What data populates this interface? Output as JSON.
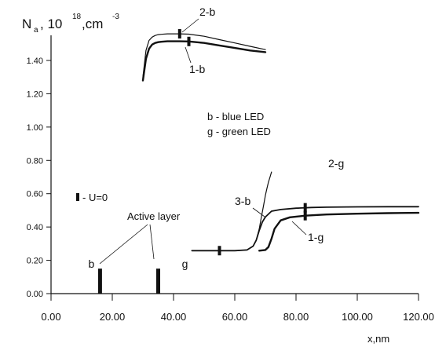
{
  "chart_data": {
    "type": "line",
    "ylabel": {
      "base": "N",
      "subscript": "a",
      "sep": ", 10",
      "exp": "18",
      "unit": ",cm",
      "unit_exp": "-3"
    },
    "xlabel": "x,nm",
    "xlim": [
      0,
      120
    ],
    "ylim": [
      0,
      1.5
    ],
    "xticks": [
      0,
      20,
      40,
      60,
      80,
      100,
      120
    ],
    "xtick_labels": [
      "0.00",
      "20.00",
      "40.00",
      "60.00",
      "80.00",
      "100.00",
      "120.00"
    ],
    "yticks": [
      0,
      0.2,
      0.4,
      0.6,
      0.8,
      1.0,
      1.2,
      1.4
    ],
    "ytick_labels": [
      "0.00",
      "0.20",
      "0.40",
      "0.60",
      "0.80",
      "1.00",
      "1.20",
      "1.40"
    ],
    "series": [
      {
        "name": "2-b",
        "x": [
          30,
          31,
          32,
          33,
          34,
          35,
          36,
          38,
          40,
          42,
          45,
          50,
          55,
          60,
          65,
          70
        ],
        "y": [
          1.3,
          1.46,
          1.52,
          1.54,
          1.55,
          1.555,
          1.557,
          1.56,
          1.56,
          1.56,
          1.558,
          1.545,
          1.525,
          1.505,
          1.485,
          1.465
        ],
        "marker_x": 42
      },
      {
        "name": "1-b",
        "x": [
          30,
          31,
          32,
          33,
          34,
          35,
          36,
          38,
          40,
          42,
          45,
          50,
          55,
          60,
          65,
          70
        ],
        "y": [
          1.28,
          1.41,
          1.47,
          1.495,
          1.505,
          1.51,
          1.512,
          1.515,
          1.515,
          1.515,
          1.514,
          1.505,
          1.49,
          1.475,
          1.46,
          1.45
        ],
        "marker_x": 45
      },
      {
        "name": "3-b",
        "x": [
          46,
          50,
          55,
          60,
          64,
          66,
          67,
          68,
          68.5,
          69,
          69.5,
          70,
          70.5,
          71,
          71.5,
          72
        ],
        "y": [
          0.258,
          0.258,
          0.258,
          0.258,
          0.262,
          0.285,
          0.32,
          0.39,
          0.44,
          0.49,
          0.54,
          0.59,
          0.63,
          0.67,
          0.7,
          0.73
        ]
      },
      {
        "name": "2-g",
        "x": [
          46,
          50,
          55,
          60,
          64,
          66,
          67,
          68,
          69,
          70,
          72,
          75,
          80,
          85,
          90,
          100,
          110,
          120
        ],
        "y": [
          0.258,
          0.258,
          0.258,
          0.258,
          0.262,
          0.285,
          0.32,
          0.38,
          0.43,
          0.46,
          0.495,
          0.505,
          0.513,
          0.517,
          0.519,
          0.521,
          0.522,
          0.522
        ],
        "marker_x": 83
      },
      {
        "name": "1-g",
        "x": [
          68,
          70,
          71,
          72,
          73,
          75,
          78,
          83,
          90,
          100,
          110,
          120
        ],
        "y": [
          0.258,
          0.262,
          0.28,
          0.33,
          0.39,
          0.44,
          0.458,
          0.468,
          0.475,
          0.48,
          0.483,
          0.485
        ],
        "marker_x": 83
      }
    ],
    "marker_points": [
      {
        "x": 55,
        "y": 0.258
      }
    ],
    "active_layer_bars": [
      {
        "x": 16,
        "y0": 0,
        "y1": 0.15,
        "label": "b"
      },
      {
        "x": 35,
        "y0": 0,
        "y1": 0.15,
        "label": "g"
      }
    ],
    "annotations": {
      "active_layer": "Active layer",
      "legend_line_b": "b - blue LED",
      "legend_line_g": "g - green LED",
      "u_zero": "- U=0"
    },
    "colors": {
      "line": "#111111",
      "axis": "#111111",
      "background": "#ffffff"
    },
    "grid": false,
    "legend": "none"
  }
}
